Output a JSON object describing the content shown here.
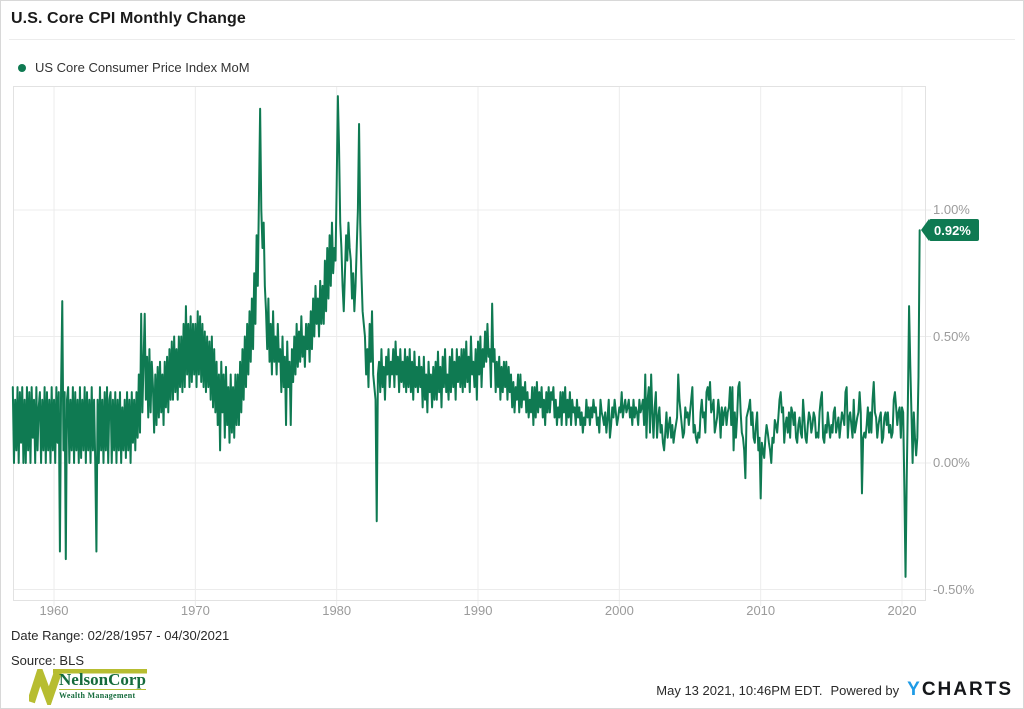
{
  "header": {
    "title": "U.S. Core CPI Monthly Change"
  },
  "legend": {
    "label": "US Core Consumer Price Index MoM",
    "dot_color": "#0f7a52"
  },
  "footer": {
    "date_range": "Date Range: 02/28/1957 - 04/30/2021",
    "source": "Source: BLS"
  },
  "branding": {
    "logo_name": "NelsonCorp",
    "logo_sub": "Wealth Management",
    "timestamp": "May 13 2021, 10:46PM EDT.",
    "powered_by": "Powered by",
    "ycharts_y": "Y",
    "ycharts_rest": "CHARTS"
  },
  "chart_data": {
    "type": "line",
    "title": "U.S. Core CPI Monthly Change",
    "series_name": "US Core Consumer Price Index MoM",
    "color": "#0f7a52",
    "grid": true,
    "legend_position": "top-left",
    "unit": "%",
    "start": {
      "year": 1957,
      "month": 2
    },
    "end": {
      "year": 2021,
      "month": 4
    },
    "last_value": 0.92,
    "last_value_label": "0.92%",
    "x_ticks": [
      1960,
      1970,
      1980,
      1990,
      2000,
      2010,
      2020
    ],
    "y_ticks": [
      {
        "value": 1.0,
        "label": "1.00%"
      },
      {
        "value": 0.5,
        "label": "0.50%"
      },
      {
        "value": 0.0,
        "label": "0.00%"
      },
      {
        "value": -0.5,
        "label": "-0.50%"
      }
    ],
    "ylim": [
      -0.545,
      1.49
    ],
    "xlim": [
      1957.05,
      2021.47
    ],
    "values_monthly": [
      0.3,
      0.0,
      0.25,
      0.05,
      0.3,
      0.0,
      0.28,
      0.08,
      0.3,
      0.0,
      0.25,
      0.0,
      0.3,
      0.05,
      0.28,
      0.0,
      0.3,
      0.1,
      0.25,
      0.0,
      0.3,
      0.05,
      0.22,
      0.28,
      0.0,
      0.25,
      0.05,
      0.3,
      0.0,
      0.28,
      0.05,
      0.25,
      0.0,
      0.3,
      0.05,
      0.25,
      0.0,
      0.3,
      0.08,
      0.28,
      -0.35,
      0.3,
      0.64,
      0.05,
      0.28,
      -0.38,
      0.25,
      0.3,
      0.0,
      0.25,
      0.05,
      0.3,
      0.0,
      0.28,
      0.05,
      0.25,
      0.0,
      0.3,
      0.02,
      0.25,
      0.05,
      0.3,
      0.0,
      0.28,
      0.05,
      0.25,
      0.0,
      0.3,
      0.05,
      0.25,
      0.0,
      -0.35,
      0.25,
      0.0,
      0.3,
      0.05,
      0.25,
      0.0,
      0.28,
      0.05,
      0.3,
      0.0,
      0.25,
      0.28,
      0.0,
      0.25,
      0.05,
      0.28,
      0.0,
      0.25,
      0.05,
      0.28,
      0.0,
      0.22,
      0.05,
      0.25,
      0.02,
      0.28,
      0.05,
      0.25,
      0.0,
      0.28,
      0.08,
      0.25,
      0.05,
      0.28,
      0.1,
      0.35,
      0.12,
      0.59,
      0.2,
      0.4,
      0.59,
      0.25,
      0.42,
      0.18,
      0.45,
      0.2,
      0.4,
      0.3,
      0.12,
      0.35,
      0.15,
      0.38,
      0.18,
      0.4,
      0.2,
      0.35,
      0.15,
      0.4,
      0.22,
      0.42,
      0.2,
      0.45,
      0.25,
      0.48,
      0.25,
      0.5,
      0.28,
      0.45,
      0.25,
      0.5,
      0.3,
      0.5,
      0.28,
      0.55,
      0.3,
      0.62,
      0.35,
      0.55,
      0.3,
      0.58,
      0.32,
      0.55,
      0.35,
      0.55,
      0.3,
      0.6,
      0.35,
      0.58,
      0.32,
      0.55,
      0.3,
      0.52,
      0.28,
      0.5,
      0.3,
      0.48,
      0.25,
      0.5,
      0.22,
      0.45,
      0.2,
      0.4,
      0.15,
      0.35,
      0.05,
      0.4,
      0.2,
      0.35,
      0.1,
      0.38,
      0.15,
      0.3,
      0.08,
      0.35,
      0.12,
      0.3,
      0.1,
      0.35,
      0.15,
      0.35,
      0.15,
      0.4,
      0.2,
      0.45,
      0.25,
      0.5,
      0.3,
      0.55,
      0.35,
      0.6,
      0.4,
      0.65,
      0.45,
      0.75,
      0.55,
      0.9,
      0.7,
      1.05,
      1.4,
      1.0,
      0.85,
      0.95,
      0.7,
      0.6,
      0.45,
      0.65,
      0.4,
      0.55,
      0.35,
      0.6,
      0.4,
      0.5,
      0.35,
      0.55,
      0.4,
      0.45,
      0.28,
      0.5,
      0.3,
      0.42,
      0.15,
      0.48,
      0.3,
      0.4,
      0.15,
      0.45,
      0.32,
      0.5,
      0.35,
      0.55,
      0.38,
      0.52,
      0.4,
      0.58,
      0.42,
      0.5,
      0.38,
      0.55,
      0.45,
      0.55,
      0.4,
      0.6,
      0.45,
      0.65,
      0.5,
      0.7,
      0.55,
      0.65,
      0.5,
      0.72,
      0.55,
      0.7,
      0.55,
      0.8,
      0.6,
      0.85,
      0.65,
      0.9,
      0.7,
      0.95,
      0.75,
      0.85,
      0.8,
      1.1,
      1.45,
      1.25,
      0.95,
      0.85,
      0.7,
      0.6,
      0.75,
      0.9,
      0.8,
      0.95,
      0.85,
      0.8,
      0.65,
      0.75,
      0.6,
      0.7,
      0.85,
      1.0,
      1.34,
      0.95,
      0.75,
      0.6,
      0.55,
      0.5,
      0.35,
      0.45,
      0.3,
      0.55,
      0.4,
      0.6,
      0.35,
      0.3,
      0.25,
      -0.23,
      0.35,
      0.4,
      0.28,
      0.45,
      0.3,
      0.38,
      0.25,
      0.42,
      0.35,
      0.45,
      0.3,
      0.4,
      0.35,
      0.45,
      0.3,
      0.48,
      0.35,
      0.42,
      0.28,
      0.45,
      0.32,
      0.4,
      0.3,
      0.45,
      0.28,
      0.42,
      0.3,
      0.45,
      0.28,
      0.4,
      0.25,
      0.44,
      0.3,
      0.38,
      0.28,
      0.42,
      0.3,
      0.38,
      0.22,
      0.42,
      0.25,
      0.35,
      0.2,
      0.4,
      0.28,
      0.35,
      0.22,
      0.38,
      0.25,
      0.4,
      0.25,
      0.44,
      0.28,
      0.38,
      0.22,
      0.42,
      0.3,
      0.45,
      0.28,
      0.35,
      0.25,
      0.42,
      0.28,
      0.45,
      0.3,
      0.4,
      0.25,
      0.45,
      0.32,
      0.42,
      0.3,
      0.45,
      0.28,
      0.45,
      0.3,
      0.48,
      0.32,
      0.42,
      0.28,
      0.5,
      0.35,
      0.4,
      0.3,
      0.45,
      0.25,
      0.48,
      0.35,
      0.5,
      0.3,
      0.45,
      0.38,
      0.52,
      0.4,
      0.55,
      0.42,
      0.45,
      0.3,
      0.63,
      0.4,
      0.45,
      0.28,
      0.4,
      0.3,
      0.42,
      0.25,
      0.38,
      0.28,
      0.4,
      0.3,
      0.4,
      0.25,
      0.38,
      0.28,
      0.35,
      0.22,
      0.32,
      0.2,
      0.3,
      0.25,
      0.35,
      0.2,
      0.35,
      0.22,
      0.3,
      0.25,
      0.32,
      0.2,
      0.28,
      0.18,
      0.25,
      0.2,
      0.3,
      0.15,
      0.3,
      0.18,
      0.32,
      0.2,
      0.28,
      0.22,
      0.3,
      0.18,
      0.25,
      0.15,
      0.28,
      0.2,
      0.3,
      0.2,
      0.28,
      0.25,
      0.3,
      0.18,
      0.25,
      0.15,
      0.22,
      0.18,
      0.28,
      0.15,
      0.28,
      0.2,
      0.3,
      0.15,
      0.25,
      0.18,
      0.28,
      0.15,
      0.25,
      0.2,
      0.22,
      0.15,
      0.25,
      0.18,
      0.22,
      0.15,
      0.2,
      0.12,
      0.18,
      0.15,
      0.25,
      0.18,
      0.22,
      0.15,
      0.22,
      0.18,
      0.25,
      0.2,
      0.22,
      0.15,
      0.18,
      0.12,
      0.25,
      0.2,
      0.18,
      0.15,
      0.2,
      0.12,
      0.18,
      0.25,
      0.1,
      0.15,
      0.22,
      0.18,
      0.25,
      0.2,
      0.15,
      0.18,
      0.22,
      0.2,
      0.28,
      0.18,
      0.22,
      0.25,
      0.2,
      0.22,
      0.25,
      0.18,
      0.22,
      0.15,
      0.25,
      0.18,
      0.22,
      0.2,
      0.15,
      0.25,
      0.2,
      0.22,
      0.25,
      0.15,
      0.35,
      0.1,
      0.25,
      0.3,
      0.12,
      0.35,
      0.2,
      0.1,
      0.22,
      0.28,
      0.1,
      0.18,
      0.22,
      0.12,
      0.15,
      0.08,
      0.05,
      0.12,
      0.2,
      0.1,
      0.15,
      0.18,
      0.1,
      0.15,
      0.08,
      0.12,
      0.15,
      0.18,
      0.35,
      0.25,
      0.2,
      0.15,
      0.1,
      0.12,
      0.22,
      0.18,
      0.2,
      0.15,
      0.2,
      0.25,
      0.3,
      0.12,
      0.15,
      0.1,
      0.08,
      0.12,
      0.1,
      0.2,
      0.25,
      0.18,
      0.2,
      0.12,
      0.28,
      0.3,
      0.25,
      0.32,
      0.2,
      0.22,
      0.25,
      0.12,
      0.15,
      0.18,
      0.25,
      0.2,
      0.1,
      0.22,
      0.15,
      0.2,
      0.22,
      0.15,
      0.2,
      0.22,
      0.3,
      0.15,
      0.3,
      0.05,
      0.2,
      0.1,
      0.18,
      0.3,
      0.32,
      0.2,
      0.12,
      0.1,
      0.05,
      -0.06,
      0.18,
      0.2,
      0.22,
      0.25,
      0.15,
      0.2,
      0.1,
      0.08,
      0.15,
      0.2,
      0.05,
      0.1,
      -0.14,
      0.08,
      0.05,
      0.02,
      0.1,
      0.15,
      0.12,
      0.08,
      0.05,
      0.0,
      0.1,
      0.08,
      0.17,
      0.15,
      0.12,
      0.18,
      0.25,
      0.28,
      0.2,
      0.22,
      0.08,
      0.15,
      0.18,
      0.12,
      0.2,
      0.1,
      0.22,
      0.2,
      0.15,
      0.2,
      0.1,
      0.08,
      0.15,
      0.18,
      0.12,
      0.1,
      0.25,
      0.18,
      0.1,
      0.08,
      0.15,
      0.2,
      0.18,
      0.12,
      0.15,
      0.2,
      0.18,
      0.1,
      0.12,
      0.1,
      0.2,
      0.25,
      0.28,
      0.1,
      0.08,
      0.15,
      0.12,
      0.2,
      0.15,
      0.1,
      0.15,
      0.12,
      0.2,
      0.22,
      0.12,
      0.15,
      0.18,
      0.1,
      0.15,
      0.2,
      0.18,
      0.15,
      0.28,
      0.3,
      0.1,
      0.18,
      0.2,
      0.15,
      0.1,
      0.25,
      0.12,
      0.15,
      0.18,
      0.2,
      0.28,
      0.2,
      -0.12,
      0.1,
      0.12,
      0.1,
      0.15,
      0.22,
      0.12,
      0.2,
      0.12,
      0.25,
      0.32,
      0.2,
      0.18,
      0.1,
      0.15,
      0.18,
      0.2,
      0.08,
      0.1,
      0.18,
      0.2,
      0.15,
      0.2,
      0.12,
      0.15,
      0.1,
      0.12,
      0.25,
      0.28,
      0.22,
      0.15,
      0.2,
      0.22,
      0.1,
      0.22,
      0.2,
      -0.1,
      -0.45,
      -0.06,
      0.24,
      0.62,
      0.39,
      0.2,
      0.0,
      0.2,
      0.1,
      0.03,
      0.1,
      0.34,
      0.92
    ]
  }
}
